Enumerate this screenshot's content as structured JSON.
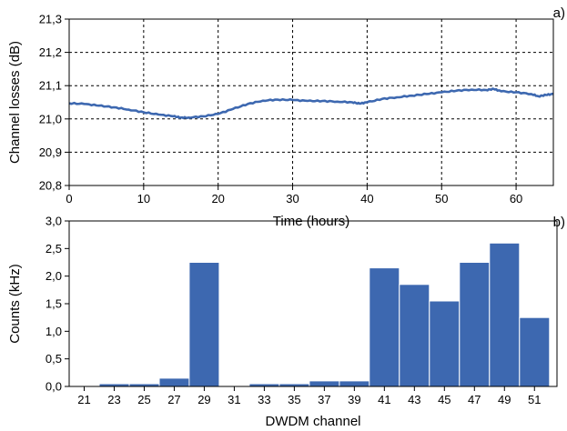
{
  "chart_data": [
    {
      "panel_label": "a)",
      "type": "line",
      "xlabel": "Time (hours)",
      "ylabel": "Channel losses (dB)",
      "xlim": [
        0,
        65
      ],
      "ylim": [
        20.8,
        21.3
      ],
      "xticks": [
        0,
        10,
        20,
        30,
        40,
        50,
        60
      ],
      "yticks": [
        "20,8",
        "20,9",
        "21,0",
        "21,1",
        "21,2",
        "21,3"
      ],
      "ytick_values": [
        20.8,
        20.9,
        21.0,
        21.1,
        21.2,
        21.3
      ],
      "grid": "dashed",
      "color": "#3d68b0",
      "x": [
        0,
        2,
        4,
        6,
        8,
        10,
        12,
        14,
        15,
        16,
        18,
        20,
        22,
        24,
        26,
        28,
        30,
        32,
        34,
        36,
        38,
        39,
        40,
        42,
        44,
        46,
        48,
        50,
        52,
        54,
        56,
        57,
        58,
        60,
        62,
        63,
        64,
        65
      ],
      "y": [
        21.047,
        21.045,
        21.04,
        21.035,
        21.028,
        21.02,
        21.013,
        21.008,
        21.004,
        21.004,
        21.008,
        21.015,
        21.03,
        21.045,
        21.055,
        21.058,
        21.057,
        21.054,
        21.054,
        21.052,
        21.05,
        21.046,
        21.05,
        21.06,
        21.065,
        21.07,
        21.075,
        21.08,
        21.085,
        21.088,
        21.087,
        21.09,
        21.083,
        21.08,
        21.075,
        21.068,
        21.072,
        21.075
      ]
    },
    {
      "panel_label": "b)",
      "type": "bar",
      "xlabel": "DWDM channel",
      "ylabel": "Counts (kHz)",
      "xlim": [
        20,
        52.5
      ],
      "ylim": [
        0,
        3.0
      ],
      "xticks": [
        "21",
        "23",
        "25",
        "27",
        "29",
        "31",
        "33",
        "35",
        "37",
        "39",
        "41",
        "43",
        "45",
        "47",
        "49",
        "51"
      ],
      "xtick_values": [
        21,
        23,
        25,
        27,
        29,
        31,
        33,
        35,
        37,
        39,
        41,
        43,
        45,
        47,
        49,
        51
      ],
      "yticks": [
        "0,0",
        "0,5",
        "1,0",
        "1,5",
        "2,0",
        "2,5",
        "3,0"
      ],
      "ytick_values": [
        0,
        0.5,
        1.0,
        1.5,
        2.0,
        2.5,
        3.0
      ],
      "color": "#3d68b0",
      "categories": [
        21,
        23,
        25,
        27,
        29,
        31,
        33,
        35,
        37,
        39,
        41,
        43,
        45,
        47,
        49,
        51
      ],
      "values": [
        0.0,
        0.05,
        0.05,
        0.15,
        2.25,
        0.0,
        0.05,
        0.05,
        0.1,
        0.1,
        2.15,
        1.85,
        1.55,
        2.25,
        2.6,
        1.25
      ]
    }
  ]
}
